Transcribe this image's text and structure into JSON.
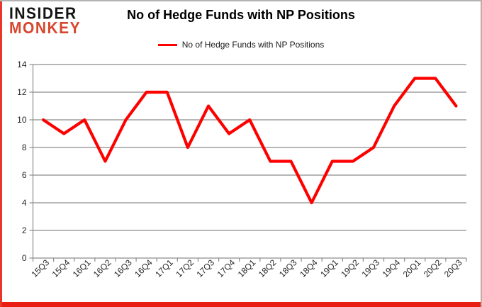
{
  "logo": {
    "line1": "INSIDER",
    "line2": "MONKEY"
  },
  "header": {
    "title": "No of Hedge Funds with NP Positions"
  },
  "legend": {
    "label": "No of Hedge Funds with NP Positions"
  },
  "colors": {
    "series": "#fe0000",
    "grid": "#8c8c8c",
    "axis_text": "#262626",
    "logo_black": "#141414",
    "logo_red": "#d8462e",
    "frame_red": "#ea1d12"
  },
  "chart_data": {
    "type": "line",
    "title": "No of Hedge Funds with NP Positions",
    "categories": [
      "15Q3",
      "15Q4",
      "16Q1",
      "16Q2",
      "16Q3",
      "16Q4",
      "17Q1",
      "17Q2",
      "17Q3",
      "17Q4",
      "18Q1",
      "18Q2",
      "18Q3",
      "18Q4",
      "19Q1",
      "19Q2",
      "19Q3",
      "19Q4",
      "20Q1",
      "20Q2",
      "20Q3"
    ],
    "series": [
      {
        "name": "No of Hedge Funds with NP Positions",
        "values": [
          10,
          9,
          10,
          7,
          10,
          12,
          12,
          8,
          11,
          9,
          10,
          7,
          7,
          4,
          7,
          7,
          8,
          11,
          13,
          13,
          11
        ]
      }
    ],
    "xlabel": "",
    "ylabel": "",
    "ylim": [
      0,
      14
    ],
    "ytick_step": 2,
    "grid": true,
    "legend_position": "top-center",
    "line_color": "#fe0000"
  }
}
